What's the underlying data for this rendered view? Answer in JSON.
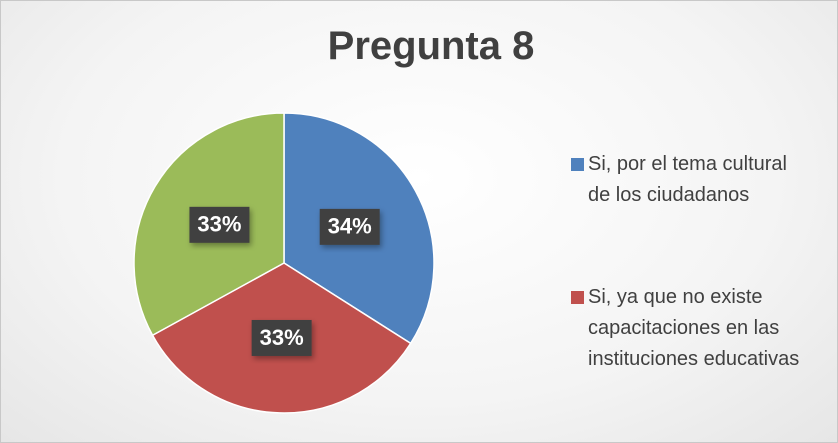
{
  "chart_data": {
    "type": "pie",
    "title": "Pregunta 8",
    "categories": [
      "Si, por el tema cultural de los ciudadanos",
      "Si, ya que no existe capacitaciones en las instituciones educativas",
      null
    ],
    "values": [
      34,
      33,
      33
    ],
    "value_labels": [
      "34%",
      "33%",
      "33%"
    ],
    "colors": [
      "#4f81bd",
      "#c0504d",
      "#9bbb59"
    ],
    "legend": "right"
  }
}
